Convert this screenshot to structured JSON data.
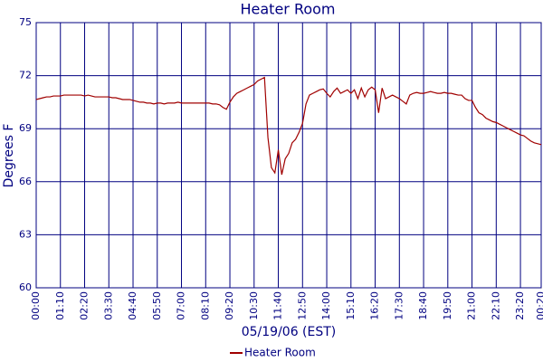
{
  "chart_data": {
    "type": "line",
    "title": "Heater Room",
    "xlabel": "05/19/06 (EST)",
    "ylabel": "Degrees F",
    "categories": [
      "00:00",
      null,
      null,
      null,
      null,
      null,
      null,
      "01:10",
      null,
      null,
      null,
      null,
      null,
      null,
      "02:20",
      null,
      null,
      null,
      null,
      null,
      null,
      "03:30",
      null,
      null,
      null,
      null,
      null,
      null,
      "04:40",
      null,
      null,
      null,
      null,
      null,
      null,
      "05:50",
      null,
      null,
      null,
      null,
      null,
      null,
      "07:00",
      null,
      null,
      null,
      null,
      null,
      null,
      "08:10",
      null,
      null,
      null,
      null,
      null,
      null,
      "09:20",
      null,
      null,
      null,
      null,
      null,
      null,
      "10:30",
      null,
      null,
      null,
      null,
      null,
      null,
      "11:40",
      null,
      null,
      null,
      null,
      null,
      null,
      "12:50",
      null,
      null,
      null,
      null,
      null,
      null,
      "14:00",
      null,
      null,
      null,
      null,
      null,
      null,
      "15:10",
      null,
      null,
      null,
      null,
      null,
      null,
      "16:20",
      null,
      null,
      null,
      null,
      null,
      null,
      "17:30",
      null,
      null,
      null,
      null,
      null,
      null,
      "18:40",
      null,
      null,
      null,
      null,
      null,
      null,
      "19:50",
      null,
      null,
      null,
      null,
      null,
      null,
      "21:00",
      null,
      null,
      null,
      null,
      null,
      null,
      "22:10",
      null,
      null,
      null,
      null,
      null,
      null,
      "23:20",
      null,
      null,
      null,
      null,
      null,
      "00:20"
    ],
    "series": [
      {
        "name": "Heater Room",
        "color": "#a00000",
        "values": [
          70.65,
          70.7,
          70.75,
          70.8,
          70.8,
          70.85,
          70.85,
          70.85,
          70.9,
          70.9,
          70.9,
          70.9,
          70.9,
          70.9,
          70.85,
          70.9,
          70.85,
          70.8,
          70.8,
          70.8,
          70.8,
          70.8,
          70.75,
          70.75,
          70.7,
          70.65,
          70.65,
          70.65,
          70.6,
          70.55,
          70.5,
          70.5,
          70.45,
          70.45,
          70.4,
          70.45,
          70.45,
          70.4,
          70.45,
          70.45,
          70.45,
          70.5,
          70.45,
          70.45,
          70.45,
          70.45,
          70.45,
          70.45,
          70.45,
          70.45,
          70.45,
          70.4,
          70.4,
          70.35,
          70.2,
          70.1,
          70.5,
          70.8,
          71.0,
          71.1,
          71.2,
          71.3,
          71.4,
          71.5,
          71.7,
          71.8,
          71.9,
          68.5,
          66.8,
          66.5,
          67.8,
          66.4,
          67.3,
          67.6,
          68.2,
          68.4,
          68.8,
          69.3,
          70.4,
          70.9,
          71.0,
          71.1,
          71.2,
          71.25,
          71.0,
          70.8,
          71.1,
          71.3,
          71.0,
          71.1,
          71.2,
          71.0,
          71.2,
          70.7,
          71.3,
          70.8,
          71.2,
          71.35,
          71.2,
          69.9,
          71.3,
          70.7,
          70.8,
          70.9,
          70.8,
          70.7,
          70.55,
          70.4,
          70.9,
          71.0,
          71.05,
          71.0,
          71.0,
          71.05,
          71.1,
          71.05,
          71.0,
          71.0,
          71.05,
          71.0,
          71.0,
          70.95,
          70.9,
          70.9,
          70.7,
          70.6,
          70.6,
          70.2,
          69.9,
          69.8,
          69.6,
          69.5,
          69.4,
          69.35,
          69.25,
          69.15,
          69.05,
          68.95,
          68.85,
          68.75,
          68.65,
          68.6,
          68.45,
          68.3,
          68.2,
          68.15,
          68.1
        ]
      }
    ],
    "ylim": [
      60,
      75
    ],
    "yticks": [
      60,
      63,
      66,
      69,
      72,
      75
    ],
    "grid": true,
    "legend": "bottom"
  }
}
